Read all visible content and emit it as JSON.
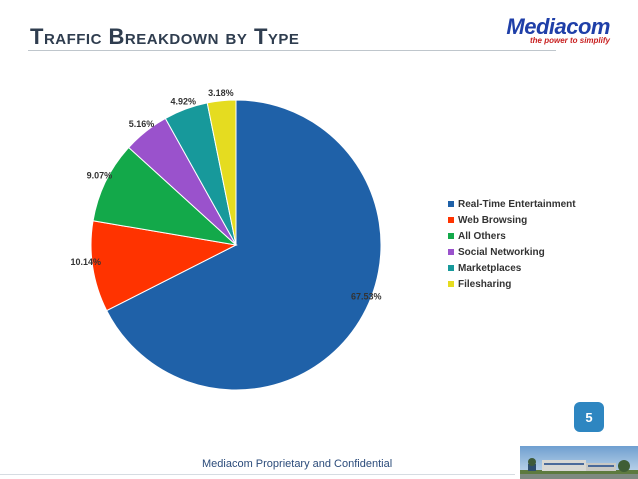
{
  "page": {
    "title": "Traffic Breakdown by Type",
    "page_number": "5",
    "footer": "Mediacom Proprietary and Confidential"
  },
  "logo": {
    "name": "Mediacom",
    "tagline": "the power to simplify",
    "brand_color": "#1f3fa8",
    "tagline_color": "#c81e1e"
  },
  "chart_data": {
    "type": "pie",
    "categories": [
      "Real-Time Entertainment",
      "Web Browsing",
      "All Others",
      "Social Networking",
      "Marketplaces",
      "Filesharing"
    ],
    "values": [
      67.53,
      10.14,
      9.07,
      5.16,
      4.92,
      3.18
    ],
    "value_labels": [
      "67.53%",
      "10.14%",
      "9.07%",
      "5.16%",
      "4.92%",
      "3.18%"
    ],
    "colors": [
      "#1f61a8",
      "#ff3300",
      "#13a94a",
      "#9a52cc",
      "#17999b",
      "#e5dc20"
    ],
    "start_angle_deg": 0,
    "direction": "clockwise",
    "legend_placement": "right",
    "title": "",
    "unit": "%"
  }
}
